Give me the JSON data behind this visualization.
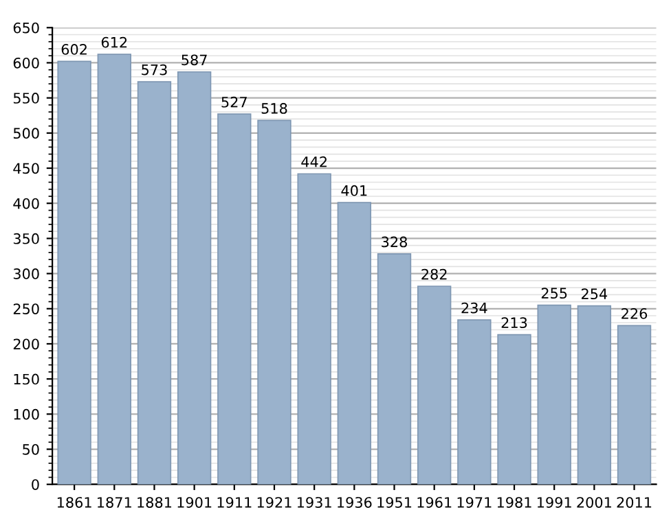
{
  "chart_data": {
    "type": "bar",
    "categories": [
      "1861",
      "1871",
      "1881",
      "1901",
      "1911",
      "1921",
      "1931",
      "1936",
      "1951",
      "1961",
      "1971",
      "1981",
      "1991",
      "2001",
      "2011"
    ],
    "values": [
      602,
      612,
      573,
      587,
      527,
      518,
      442,
      401,
      328,
      282,
      234,
      213,
      255,
      254,
      226
    ],
    "color": "#9ab2cc",
    "ylim": [
      0,
      650
    ],
    "yticks": [
      0,
      50,
      100,
      150,
      200,
      250,
      300,
      350,
      400,
      450,
      500,
      550,
      600,
      650
    ],
    "grid": "y",
    "data_labels": true
  }
}
